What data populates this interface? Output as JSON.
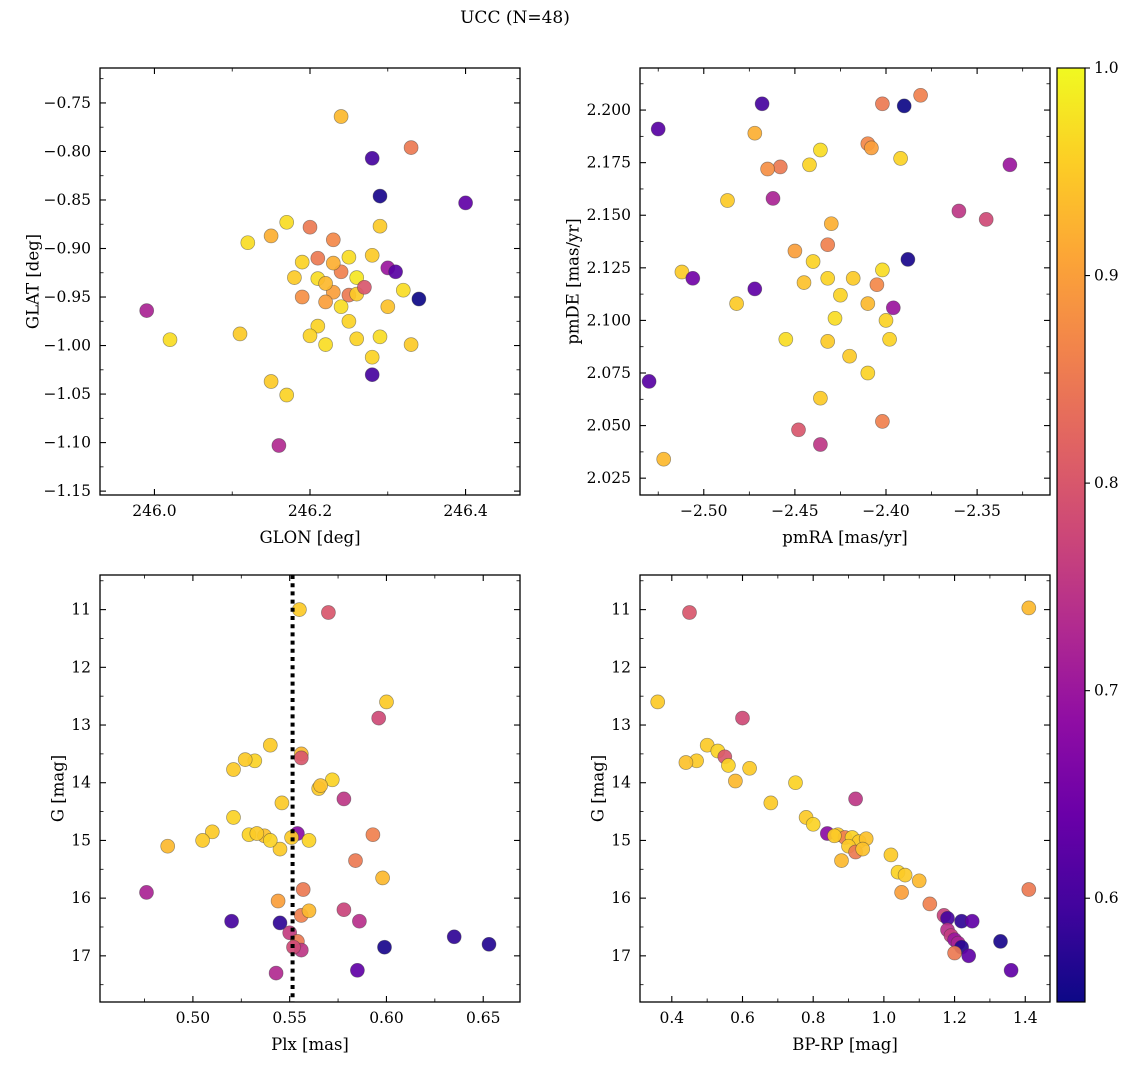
{
  "chart_data": {
    "type": "scatter",
    "title": "UCC (N=48)",
    "n_stars": 48,
    "layout": "2x2-grid-with-shared-colorbar",
    "colorbar": {
      "cmap": "plasma",
      "vmin": 0.55,
      "vmax": 1.0,
      "ticks": [
        1.0,
        0.9,
        0.8,
        0.7,
        0.6
      ],
      "tick_labels": [
        "1.0",
        "0.9",
        "0.8",
        "0.7",
        "0.6"
      ],
      "position": "right"
    },
    "panels": [
      {
        "id": "glon-glat",
        "xlabel": "GLON [deg]",
        "ylabel": "GLAT [deg]",
        "xlim": [
          245.93,
          246.47
        ],
        "ylim": [
          -1.154,
          -0.714
        ],
        "xticks": [
          246.0,
          246.2,
          246.4
        ],
        "xtick_labels": [
          "246.0",
          "246.2",
          "246.4"
        ],
        "yticks": [
          -0.75,
          -0.8,
          -0.85,
          -0.9,
          -0.95,
          -1.0,
          -1.05,
          -1.1,
          -1.15
        ],
        "ytick_labels": [
          "−0.75",
          "−0.80",
          "−0.85",
          "−0.90",
          "−0.95",
          "−1.00",
          "−1.05",
          "−1.10",
          "−1.15"
        ],
        "points": [
          [
            246.24,
            -0.764,
            0.93
          ],
          [
            246.33,
            -0.796,
            0.85
          ],
          [
            246.28,
            -0.807,
            0.6
          ],
          [
            246.29,
            -0.846,
            0.56
          ],
          [
            246.4,
            -0.853,
            0.63
          ],
          [
            246.17,
            -0.873,
            0.97
          ],
          [
            246.2,
            -0.878,
            0.85
          ],
          [
            246.29,
            -0.877,
            0.95
          ],
          [
            246.15,
            -0.887,
            0.92
          ],
          [
            246.12,
            -0.894,
            0.97
          ],
          [
            246.23,
            -0.891,
            0.87
          ],
          [
            246.19,
            -0.914,
            0.96
          ],
          [
            246.21,
            -0.91,
            0.85
          ],
          [
            246.25,
            -0.909,
            0.97
          ],
          [
            246.28,
            -0.907,
            0.95
          ],
          [
            246.3,
            -0.92,
            0.7
          ],
          [
            246.31,
            -0.924,
            0.62
          ],
          [
            246.24,
            -0.924,
            0.86
          ],
          [
            246.21,
            -0.931,
            0.97
          ],
          [
            246.26,
            -0.93,
            0.98
          ],
          [
            246.23,
            -0.945,
            0.9
          ],
          [
            246.25,
            -0.948,
            0.85
          ],
          [
            246.32,
            -0.943,
            0.97
          ],
          [
            246.34,
            -0.952,
            0.55
          ],
          [
            245.99,
            -0.964,
            0.72
          ],
          [
            246.21,
            -0.98,
            0.96
          ],
          [
            246.02,
            -0.994,
            0.97
          ],
          [
            246.11,
            -0.988,
            0.95
          ],
          [
            246.22,
            -0.999,
            0.97
          ],
          [
            246.26,
            -0.993,
            0.96
          ],
          [
            246.29,
            -0.991,
            0.97
          ],
          [
            246.33,
            -0.999,
            0.95
          ],
          [
            246.28,
            -1.012,
            0.96
          ],
          [
            246.15,
            -1.037,
            0.95
          ],
          [
            246.28,
            -1.03,
            0.6
          ],
          [
            246.17,
            -1.051,
            0.96
          ],
          [
            246.16,
            -1.103,
            0.73
          ],
          [
            246.22,
            -0.936,
            0.93
          ],
          [
            246.26,
            -0.947,
            0.95
          ],
          [
            246.19,
            -0.95,
            0.88
          ],
          [
            246.24,
            -0.96,
            0.97
          ],
          [
            246.2,
            -0.99,
            0.96
          ],
          [
            246.27,
            -0.94,
            0.8
          ],
          [
            246.23,
            -0.915,
            0.92
          ],
          [
            246.18,
            -0.93,
            0.95
          ],
          [
            246.25,
            -0.975,
            0.96
          ],
          [
            246.3,
            -0.96,
            0.94
          ],
          [
            246.22,
            -0.955,
            0.9
          ]
        ]
      },
      {
        "id": "pmra-pmde",
        "xlabel": "pmRA [mas/yr]",
        "ylabel": "pmDE [mas/yr]",
        "xlim": [
          -2.535,
          -2.31
        ],
        "ylim": [
          2.017,
          2.22
        ],
        "xticks": [
          -2.5,
          -2.45,
          -2.4,
          -2.35
        ],
        "xtick_labels": [
          "−2.50",
          "−2.45",
          "−2.40",
          "−2.35"
        ],
        "yticks": [
          2.025,
          2.05,
          2.075,
          2.1,
          2.125,
          2.15,
          2.175,
          2.2
        ],
        "ytick_labels": [
          "2.025",
          "2.050",
          "2.075",
          "2.100",
          "2.125",
          "2.150",
          "2.175",
          "2.200"
        ],
        "points": [
          [
            -2.525,
            2.191,
            0.62
          ],
          [
            -2.468,
            2.203,
            0.6
          ],
          [
            -2.402,
            2.203,
            0.85
          ],
          [
            -2.381,
            2.207,
            0.86
          ],
          [
            -2.39,
            2.202,
            0.55
          ],
          [
            -2.472,
            2.189,
            0.92
          ],
          [
            -2.436,
            2.181,
            0.97
          ],
          [
            -2.41,
            2.184,
            0.87
          ],
          [
            -2.332,
            2.174,
            0.7
          ],
          [
            -2.442,
            2.174,
            0.96
          ],
          [
            -2.458,
            2.173,
            0.85
          ],
          [
            -2.392,
            2.177,
            0.96
          ],
          [
            -2.487,
            2.157,
            0.95
          ],
          [
            -2.462,
            2.158,
            0.72
          ],
          [
            -2.36,
            2.152,
            0.75
          ],
          [
            -2.345,
            2.148,
            0.78
          ],
          [
            -2.432,
            2.136,
            0.86
          ],
          [
            -2.512,
            2.123,
            0.95
          ],
          [
            -2.506,
            2.12,
            0.65
          ],
          [
            -2.44,
            2.128,
            0.96
          ],
          [
            -2.402,
            2.124,
            0.97
          ],
          [
            -2.388,
            2.129,
            0.56
          ],
          [
            -2.472,
            2.115,
            0.63
          ],
          [
            -2.482,
            2.108,
            0.95
          ],
          [
            -2.432,
            2.12,
            0.96
          ],
          [
            -2.405,
            2.117,
            0.87
          ],
          [
            -2.396,
            2.106,
            0.7
          ],
          [
            -2.4,
            2.1,
            0.96
          ],
          [
            -2.455,
            2.091,
            0.97
          ],
          [
            -2.432,
            2.09,
            0.95
          ],
          [
            -2.53,
            2.071,
            0.62
          ],
          [
            -2.41,
            2.075,
            0.96
          ],
          [
            -2.436,
            2.063,
            0.95
          ],
          [
            -2.448,
            2.048,
            0.8
          ],
          [
            -2.436,
            2.041,
            0.75
          ],
          [
            -2.402,
            2.052,
            0.86
          ],
          [
            -2.522,
            2.034,
            0.93
          ],
          [
            -2.425,
            2.112,
            0.96
          ],
          [
            -2.418,
            2.12,
            0.95
          ],
          [
            -2.428,
            2.101,
            0.97
          ],
          [
            -2.445,
            2.118,
            0.94
          ],
          [
            -2.41,
            2.108,
            0.93
          ],
          [
            -2.43,
            2.146,
            0.92
          ],
          [
            -2.45,
            2.133,
            0.9
          ],
          [
            -2.398,
            2.091,
            0.96
          ],
          [
            -2.42,
            2.083,
            0.95
          ],
          [
            -2.465,
            2.172,
            0.88
          ],
          [
            -2.408,
            2.182,
            0.9
          ]
        ]
      },
      {
        "id": "plx-g",
        "xlabel": "Plx [mas]",
        "ylabel": "G [mag]",
        "xlim": [
          0.452,
          0.669
        ],
        "ylim": [
          17.8,
          10.4
        ],
        "xticks": [
          0.5,
          0.55,
          0.6,
          0.65
        ],
        "xtick_labels": [
          "0.50",
          "0.55",
          "0.60",
          "0.65"
        ],
        "yticks": [
          11,
          12,
          13,
          14,
          15,
          16,
          17
        ],
        "ytick_labels": [
          "11",
          "12",
          "13",
          "14",
          "15",
          "16",
          "17"
        ],
        "vline": {
          "x": 0.5515,
          "style": "dotted",
          "color": "#000000"
        },
        "points": [
          [
            0.555,
            11.0,
            0.95
          ],
          [
            0.57,
            11.05,
            0.8
          ],
          [
            0.6,
            12.6,
            0.95
          ],
          [
            0.596,
            12.88,
            0.78
          ],
          [
            0.54,
            13.35,
            0.95
          ],
          [
            0.556,
            13.5,
            0.93
          ],
          [
            0.532,
            13.62,
            0.96
          ],
          [
            0.556,
            13.57,
            0.8
          ],
          [
            0.521,
            13.77,
            0.95
          ],
          [
            0.572,
            13.95,
            0.96
          ],
          [
            0.565,
            14.1,
            0.95
          ],
          [
            0.578,
            14.28,
            0.75
          ],
          [
            0.546,
            14.35,
            0.95
          ],
          [
            0.521,
            14.6,
            0.96
          ],
          [
            0.51,
            14.85,
            0.95
          ],
          [
            0.529,
            14.9,
            0.96
          ],
          [
            0.537,
            14.92,
            0.94
          ],
          [
            0.505,
            15.0,
            0.95
          ],
          [
            0.487,
            15.1,
            0.93
          ],
          [
            0.554,
            14.88,
            0.68
          ],
          [
            0.56,
            15.0,
            0.96
          ],
          [
            0.545,
            15.15,
            0.95
          ],
          [
            0.593,
            14.9,
            0.86
          ],
          [
            0.584,
            15.35,
            0.85
          ],
          [
            0.598,
            15.65,
            0.93
          ],
          [
            0.476,
            15.9,
            0.72
          ],
          [
            0.557,
            15.85,
            0.85
          ],
          [
            0.544,
            16.05,
            0.9
          ],
          [
            0.52,
            16.4,
            0.6
          ],
          [
            0.545,
            16.43,
            0.58
          ],
          [
            0.556,
            16.3,
            0.86
          ],
          [
            0.56,
            16.22,
            0.93
          ],
          [
            0.578,
            16.2,
            0.77
          ],
          [
            0.586,
            16.4,
            0.74
          ],
          [
            0.55,
            16.6,
            0.76
          ],
          [
            0.554,
            16.75,
            0.85
          ],
          [
            0.556,
            16.9,
            0.75
          ],
          [
            0.599,
            16.85,
            0.56
          ],
          [
            0.635,
            16.67,
            0.58
          ],
          [
            0.653,
            16.8,
            0.57
          ],
          [
            0.585,
            17.25,
            0.63
          ],
          [
            0.543,
            17.3,
            0.73
          ],
          [
            0.551,
            14.95,
            0.95
          ],
          [
            0.54,
            15.0,
            0.96
          ],
          [
            0.533,
            14.88,
            0.95
          ],
          [
            0.527,
            13.6,
            0.95
          ],
          [
            0.566,
            14.05,
            0.94
          ],
          [
            0.552,
            16.85,
            0.78
          ]
        ]
      },
      {
        "id": "bprp-g",
        "xlabel": "BP-RP [mag]",
        "ylabel": "G [mag]",
        "xlim": [
          0.31,
          1.47
        ],
        "ylim": [
          17.8,
          10.4
        ],
        "xticks": [
          0.4,
          0.6,
          0.8,
          1.0,
          1.2,
          1.4
        ],
        "xtick_labels": [
          "0.4",
          "0.6",
          "0.8",
          "1.0",
          "1.2",
          "1.4"
        ],
        "yticks": [
          11,
          12,
          13,
          14,
          15,
          16,
          17
        ],
        "ytick_labels": [
          "11",
          "12",
          "13",
          "14",
          "15",
          "16",
          "17"
        ],
        "points": [
          [
            0.45,
            11.05,
            0.8
          ],
          [
            1.41,
            10.97,
            0.93
          ],
          [
            0.36,
            12.6,
            0.95
          ],
          [
            0.6,
            12.88,
            0.78
          ],
          [
            0.5,
            13.35,
            0.95
          ],
          [
            0.53,
            13.45,
            0.96
          ],
          [
            0.55,
            13.55,
            0.8
          ],
          [
            0.47,
            13.62,
            0.95
          ],
          [
            0.44,
            13.65,
            0.94
          ],
          [
            0.56,
            13.7,
            0.96
          ],
          [
            0.62,
            13.75,
            0.95
          ],
          [
            0.58,
            13.97,
            0.93
          ],
          [
            0.75,
            14.0,
            0.96
          ],
          [
            0.92,
            14.28,
            0.75
          ],
          [
            0.68,
            14.35,
            0.95
          ],
          [
            0.78,
            14.6,
            0.95
          ],
          [
            0.8,
            14.72,
            0.96
          ],
          [
            0.84,
            14.88,
            0.68
          ],
          [
            0.87,
            14.9,
            0.95
          ],
          [
            0.89,
            14.95,
            0.86
          ],
          [
            0.91,
            14.95,
            0.96
          ],
          [
            0.93,
            15.02,
            0.95
          ],
          [
            0.95,
            14.97,
            0.94
          ],
          [
            0.9,
            15.1,
            0.95
          ],
          [
            0.92,
            15.2,
            0.85
          ],
          [
            0.88,
            15.35,
            0.93
          ],
          [
            1.02,
            15.25,
            0.95
          ],
          [
            1.04,
            15.55,
            0.96
          ],
          [
            1.1,
            15.7,
            0.93
          ],
          [
            1.05,
            15.9,
            0.9
          ],
          [
            1.41,
            15.85,
            0.85
          ],
          [
            1.13,
            16.1,
            0.86
          ],
          [
            1.17,
            16.3,
            0.77
          ],
          [
            1.18,
            16.35,
            0.6
          ],
          [
            1.22,
            16.4,
            0.58
          ],
          [
            1.25,
            16.4,
            0.63
          ],
          [
            1.18,
            16.55,
            0.74
          ],
          [
            1.19,
            16.65,
            0.76
          ],
          [
            1.2,
            16.72,
            0.7
          ],
          [
            1.21,
            16.78,
            0.72
          ],
          [
            1.22,
            16.85,
            0.57
          ],
          [
            1.33,
            16.75,
            0.56
          ],
          [
            1.24,
            17.0,
            0.63
          ],
          [
            1.36,
            17.25,
            0.63
          ],
          [
            1.2,
            16.95,
            0.85
          ],
          [
            0.86,
            14.92,
            0.95
          ],
          [
            0.94,
            15.15,
            0.94
          ],
          [
            1.06,
            15.6,
            0.95
          ]
        ]
      }
    ]
  }
}
